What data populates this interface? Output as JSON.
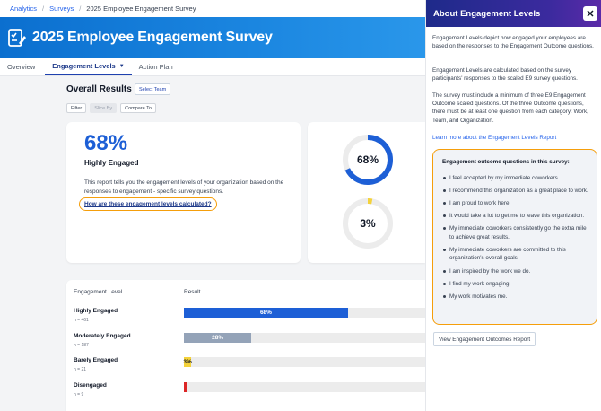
{
  "breadcrumb": {
    "items": [
      "Analytics",
      "Surveys"
    ],
    "current": "2025 Employee Engagement Survey",
    "separator": "/"
  },
  "banner": {
    "title": "2025 Employee Engagement Survey",
    "icon": "survey-clipboard-icon"
  },
  "tabs": [
    {
      "label": "Overview"
    },
    {
      "label": "Engagement Levels",
      "active": true
    },
    {
      "label": "Action Plan"
    }
  ],
  "results": {
    "title": "Overall Results",
    "select_team": "Select Team",
    "filters": [
      "Filter",
      "Slice By",
      "Compare To"
    ]
  },
  "summary": {
    "percent": "68%",
    "label": "Highly Engaged",
    "description": "This report tells you the engagement levels of your organization based on the responses to engagement - specific survey questions.",
    "calc_link": "How are these engagement levels calculated?"
  },
  "donuts": [
    {
      "label": "68%",
      "value": 68,
      "color": "#1d5fd6"
    },
    {
      "label": "3%",
      "value": 3,
      "color": "#f4d23a"
    }
  ],
  "table": {
    "col_level": "Engagement Level",
    "col_result": "Result",
    "rows": [
      {
        "level": "Highly Engaged",
        "n": "n = 461",
        "value": 68,
        "label": "68%",
        "color": "#1d5fd6"
      },
      {
        "level": "Moderately Engaged",
        "n": "n = 187",
        "value": 28,
        "label": "28%",
        "color": "#94a3b8"
      },
      {
        "level": "Barely Engaged",
        "n": "n = 21",
        "value": 3,
        "label": "3%",
        "color": "#f4d23a"
      },
      {
        "level": "Disengaged",
        "n": "n = 9",
        "value": 1,
        "label": "",
        "color": "#dc2626"
      }
    ]
  },
  "panel": {
    "title": "About Engagement Levels",
    "paragraphs": [
      "Engagement Levels depict how engaged your employees are based on the responses to the Engagement Outcome questions.",
      "Engagement Levels are calculated based on the survey participants' responses to the scaled E9 survey questions.",
      "The survey must include a minimum of three E9 Engagement Outcome scaled questions. Of the three Outcome questions, there must be at least one question from each category: Work, Team, and Organization."
    ],
    "learn_more": "Learn more about the Engagement Levels Report",
    "questions_title": "Engagement outcome questions in this survey:",
    "questions": [
      "I feel accepted by my immediate coworkers.",
      "I recommend this organization as a great place to work.",
      "I am proud to work here.",
      "It would take a lot to get me to leave this organization.",
      "My immediate coworkers consistently go the extra mile to achieve great results.",
      "My immediate coworkers are committed to this organization's overall goals.",
      "I am inspired by the work we do.",
      "I find my work engaging.",
      "My work motivates me."
    ],
    "view_button": "View Engagement Outcomes Report",
    "close_icon": "close-icon"
  }
}
